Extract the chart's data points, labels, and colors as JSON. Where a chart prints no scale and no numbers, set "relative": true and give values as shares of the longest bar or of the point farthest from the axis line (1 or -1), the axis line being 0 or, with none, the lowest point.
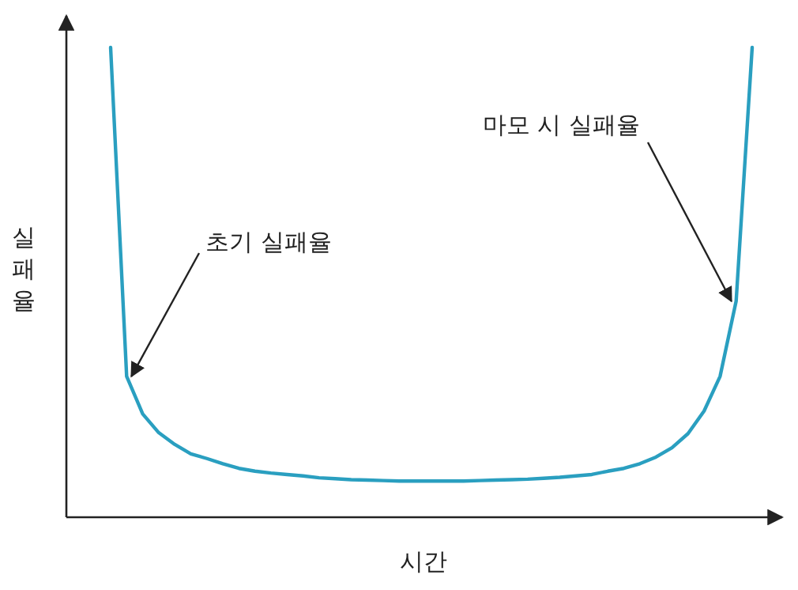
{
  "chart_data": {
    "type": "line",
    "relative": true,
    "xlabel": "시간",
    "ylabel": "실패율",
    "categories": [
      null,
      null,
      null,
      null,
      null,
      null,
      null,
      null,
      null,
      null,
      null,
      null,
      null,
      null,
      null,
      null,
      null,
      null,
      null,
      null,
      null,
      null,
      null,
      null,
      null,
      null,
      null,
      null,
      null,
      null,
      null,
      null,
      null,
      null,
      null,
      null,
      null,
      null,
      null,
      null,
      null
    ],
    "series": [
      {
        "color": "#2a9fc0",
        "values": [
          1.0,
          0.3,
          0.22,
          0.18,
          0.155,
          0.135,
          0.125,
          0.114,
          0.104,
          0.098,
          0.094,
          0.091,
          0.088,
          0.084,
          0.082,
          0.08,
          0.079,
          0.078,
          0.077,
          0.077,
          0.077,
          0.077,
          0.077,
          0.078,
          0.079,
          0.08,
          0.081,
          0.083,
          0.085,
          0.088,
          0.091,
          0.098,
          0.104,
          0.114,
          0.128,
          0.148,
          0.178,
          0.226,
          0.3,
          0.46,
          1.0
        ]
      }
    ],
    "annotations": [
      "초기 실패율",
      "마모 시 실패율"
    ]
  }
}
